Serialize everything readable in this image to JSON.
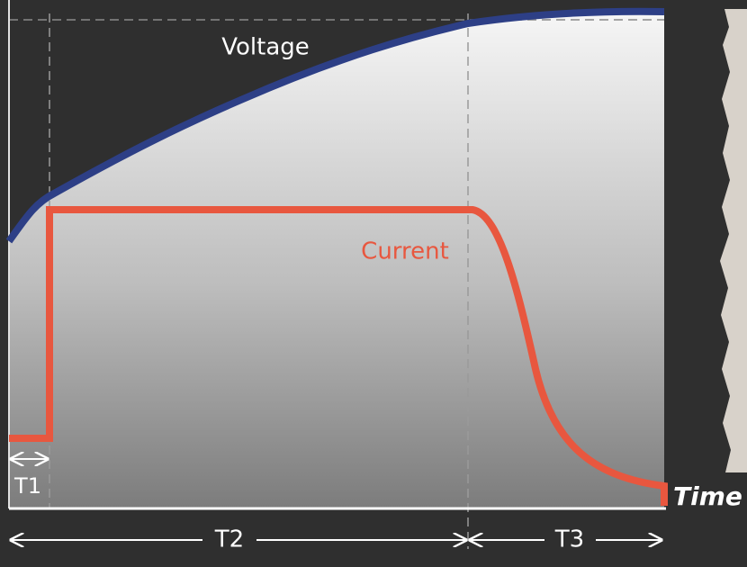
{
  "labels": {
    "voltage": "Voltage",
    "current": "Current",
    "t1": "T1",
    "t2": "T2",
    "t3": "T3",
    "time": "Time"
  }
}
